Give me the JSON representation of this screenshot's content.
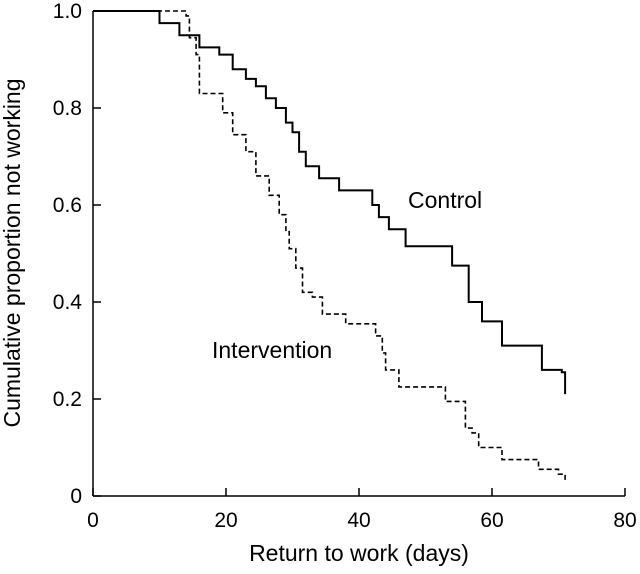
{
  "chart_data": {
    "type": "line",
    "subtype": "step",
    "xlabel": "Return to work (days)",
    "ylabel": "Cumulative proportion not working",
    "xlim": [
      0,
      80
    ],
    "ylim": [
      0,
      1.0
    ],
    "x_ticks": [
      "0",
      "20",
      "40",
      "60",
      "80"
    ],
    "y_ticks": [
      "0",
      "0.2",
      "0.4",
      "0.6",
      "0.8",
      "1.0"
    ],
    "grid": false,
    "series": [
      {
        "name": "Control",
        "line_style": "solid",
        "points": [
          [
            0,
            1.0
          ],
          [
            10,
            0.975
          ],
          [
            13,
            0.95
          ],
          [
            16,
            0.925
          ],
          [
            19,
            0.91
          ],
          [
            21,
            0.88
          ],
          [
            23,
            0.86
          ],
          [
            24.5,
            0.845
          ],
          [
            26,
            0.82
          ],
          [
            27.5,
            0.8
          ],
          [
            29,
            0.77
          ],
          [
            30,
            0.75
          ],
          [
            31,
            0.71
          ],
          [
            32,
            0.68
          ],
          [
            34,
            0.655
          ],
          [
            37,
            0.63
          ],
          [
            42,
            0.6
          ],
          [
            43,
            0.575
          ],
          [
            44.5,
            0.55
          ],
          [
            47,
            0.515
          ],
          [
            54,
            0.475
          ],
          [
            56.5,
            0.4
          ],
          [
            58.5,
            0.36
          ],
          [
            61.5,
            0.31
          ],
          [
            67.5,
            0.26
          ],
          [
            70.5,
            0.255
          ],
          [
            71,
            0.21
          ]
        ]
      },
      {
        "name": "Intervention",
        "line_style": "dashed",
        "points": [
          [
            0,
            1.0
          ],
          [
            14,
            0.99
          ],
          [
            14.5,
            0.945
          ],
          [
            15.5,
            0.91
          ],
          [
            16,
            0.83
          ],
          [
            19.5,
            0.79
          ],
          [
            21,
            0.745
          ],
          [
            23,
            0.71
          ],
          [
            24.5,
            0.66
          ],
          [
            26.5,
            0.62
          ],
          [
            28,
            0.58
          ],
          [
            29,
            0.545
          ],
          [
            29.5,
            0.51
          ],
          [
            30.5,
            0.47
          ],
          [
            31.5,
            0.42
          ],
          [
            33,
            0.41
          ],
          [
            34.5,
            0.375
          ],
          [
            38,
            0.355
          ],
          [
            42.5,
            0.33
          ],
          [
            43.5,
            0.295
          ],
          [
            44,
            0.26
          ],
          [
            46,
            0.225
          ],
          [
            53,
            0.195
          ],
          [
            56,
            0.14
          ],
          [
            57,
            0.13
          ],
          [
            58,
            0.1
          ],
          [
            61.5,
            0.075
          ],
          [
            67,
            0.055
          ],
          [
            70,
            0.045
          ],
          [
            71,
            0.03
          ]
        ]
      }
    ]
  }
}
